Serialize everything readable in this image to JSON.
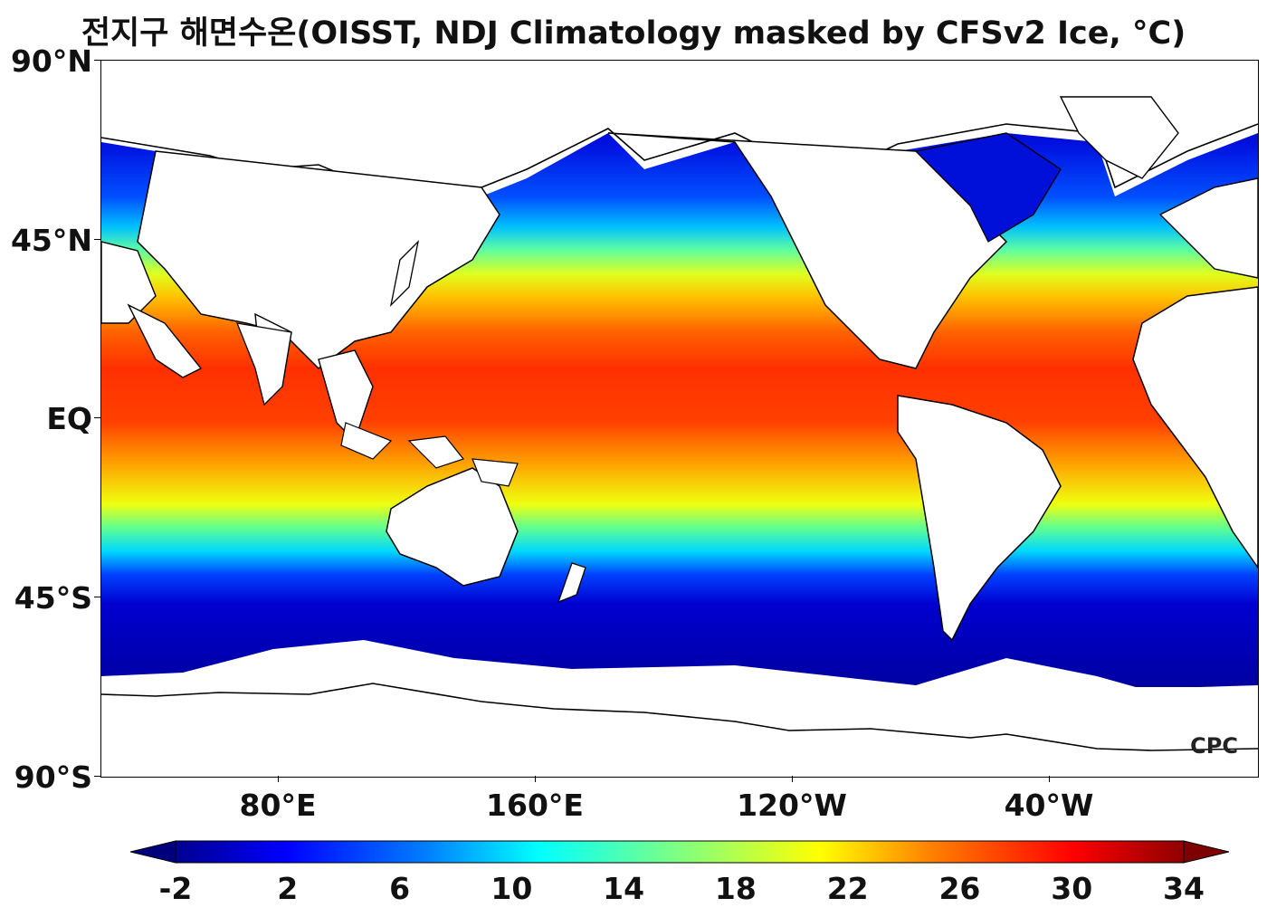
{
  "title": "전지구 해면수온(OISST, NDJ Climatology masked by CFSv2 Ice, °C)",
  "watermark": "CPC",
  "lat_labels": [
    "90°N",
    "45°N",
    "EQ",
    "45°S",
    "90°S"
  ],
  "lon_labels": [
    "80°E",
    "160°E",
    "120°W",
    "40°W"
  ],
  "colorbar": {
    "ticks": [
      "-2",
      "2",
      "6",
      "10",
      "14",
      "18",
      "22",
      "26",
      "30",
      "34"
    ],
    "min": -2,
    "max": 34,
    "colors": [
      "#00007f",
      "#0000ff",
      "#0080ff",
      "#00ffff",
      "#80ff80",
      "#ffff00",
      "#ff8000",
      "#ff0000",
      "#7f0000"
    ]
  },
  "chart_data": {
    "type": "heatmap",
    "title": "전지구 해면수온(OISST, NDJ Climatology masked by CFSv2 Ice, °C)",
    "x_ticks": [
      "80°E",
      "160°E",
      "120°W",
      "40°W"
    ],
    "y_ticks": [
      "90°N",
      "45°N",
      "EQ",
      "45°S",
      "90°S"
    ],
    "value_range": [
      -2,
      34
    ],
    "colorbar_ticks": [
      -2,
      2,
      6,
      10,
      14,
      18,
      22,
      26,
      30,
      34
    ],
    "units": "°C"
  }
}
